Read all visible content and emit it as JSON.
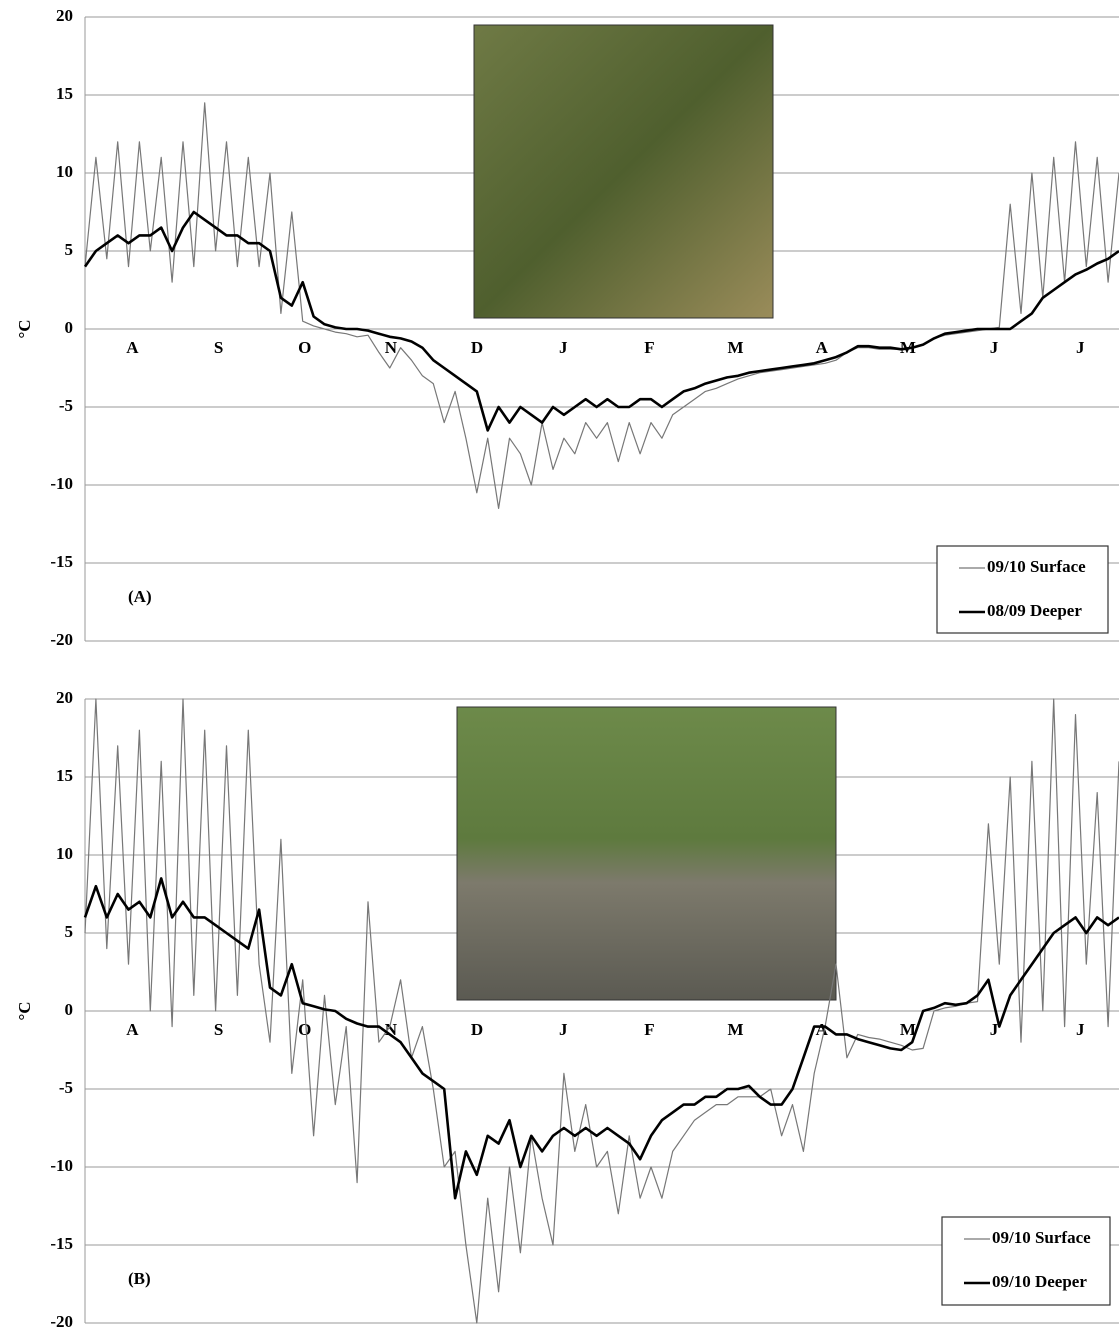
{
  "chart_data": [
    {
      "type": "line",
      "panel_label": "(A)",
      "y_label": "°C",
      "x_labels": [
        "A",
        "S",
        "O",
        "N",
        "D",
        "J",
        "F",
        "M",
        "A",
        "M",
        "J",
        "J"
      ],
      "ylim": [
        -20,
        20
      ],
      "yticks": [
        -20,
        -15,
        -10,
        -5,
        0,
        5,
        10,
        15,
        20
      ],
      "grid": true,
      "series": [
        {
          "name": "09/10 Surface",
          "color": "#777777",
          "values": [
            4,
            11,
            4.5,
            12,
            4,
            12,
            5,
            11,
            3,
            12,
            4,
            14.5,
            5,
            12,
            4,
            11,
            4,
            10,
            1,
            7.5,
            0.5,
            0.2,
            0,
            -0.2,
            -0.3,
            -0.5,
            -0.4,
            -1.5,
            -2.5,
            -1.2,
            -2,
            -3,
            -3.5,
            -6,
            -4,
            -7,
            -10.5,
            -7,
            -11.5,
            -7,
            -8,
            -10,
            -6,
            -9,
            -7,
            -8,
            -6,
            -7,
            -6,
            -8.5,
            -6,
            -8,
            -6,
            -7,
            -5.5,
            -5,
            -4.5,
            -4,
            -3.8,
            -3.5,
            -3.2,
            -3,
            -2.8,
            -2.7,
            -2.6,
            -2.5,
            -2.4,
            -2.3,
            -2.2,
            -2,
            -1.5,
            -1.2,
            -1.2,
            -1.3,
            -1.3,
            -1.3,
            -1.2,
            -1,
            -0.6,
            -0.4,
            -0.3,
            -0.2,
            -0.1,
            0,
            0.1,
            8,
            1,
            10,
            2,
            11,
            3,
            12,
            4,
            11,
            3,
            10
          ]
        },
        {
          "name": "08/09 Deeper",
          "color": "#000000",
          "values": [
            4,
            5,
            5.5,
            6,
            5.5,
            6,
            6,
            6.5,
            5,
            6.5,
            7.5,
            7,
            6.5,
            6,
            6,
            5.5,
            5.5,
            5,
            2,
            1.5,
            3,
            0.8,
            0.3,
            0.1,
            0,
            0,
            -0.1,
            -0.3,
            -0.5,
            -0.6,
            -0.8,
            -1.2,
            -2,
            -2.5,
            -3,
            -3.5,
            -4,
            -6.5,
            -5,
            -6,
            -5,
            -5.5,
            -6,
            -5,
            -5.5,
            -5,
            -4.5,
            -5,
            -4.5,
            -5,
            -5,
            -4.5,
            -4.5,
            -5,
            -4.5,
            -4,
            -3.8,
            -3.5,
            -3.3,
            -3.1,
            -3,
            -2.8,
            -2.7,
            -2.6,
            -2.5,
            -2.4,
            -2.3,
            -2.2,
            -2,
            -1.8,
            -1.5,
            -1.1,
            -1.1,
            -1.2,
            -1.2,
            -1.3,
            -1.2,
            -1,
            -0.6,
            -0.3,
            -0.2,
            -0.1,
            0,
            0,
            0,
            0,
            0.5,
            1,
            2,
            2.5,
            3,
            3.5,
            3.8,
            4.2,
            4.5,
            5
          ]
        }
      ]
    },
    {
      "type": "line",
      "panel_label": "(B)",
      "y_label": "°C",
      "x_labels": [
        "A",
        "S",
        "O",
        "N",
        "D",
        "J",
        "F",
        "M",
        "A",
        "M",
        "J",
        "J"
      ],
      "ylim": [
        -20,
        20
      ],
      "yticks": [
        -20,
        -15,
        -10,
        -5,
        0,
        5,
        10,
        15,
        20
      ],
      "grid": true,
      "series": [
        {
          "name": "09/10 Surface",
          "color": "#777777",
          "values": [
            5,
            20,
            4,
            17,
            3,
            18,
            0,
            16,
            -1,
            20,
            1,
            18,
            0,
            17,
            1,
            18,
            3,
            -2,
            11,
            -4,
            2,
            -8,
            1,
            -6,
            -1,
            -11,
            7,
            -2,
            -1,
            2,
            -3,
            -1,
            -5,
            -10,
            -9,
            -15,
            -20,
            -12,
            -18,
            -10,
            -15.5,
            -8,
            -12,
            -15,
            -4,
            -9,
            -6,
            -10,
            -9,
            -13,
            -8,
            -12,
            -10,
            -12,
            -9,
            -8,
            -7,
            -6.5,
            -6,
            -6,
            -5.5,
            -5.5,
            -5.5,
            -5,
            -8,
            -6,
            -9,
            -4,
            -1,
            3,
            -3,
            -1.5,
            -1.7,
            -1.8,
            -2,
            -2.2,
            -2.5,
            -2.4,
            0,
            0.2,
            0.3,
            0.5,
            0.6,
            12,
            3,
            15,
            -2,
            16,
            0,
            20,
            -1,
            19,
            3,
            14,
            -1,
            16
          ]
        },
        {
          "name": "09/10 Deeper",
          "color": "#000000",
          "values": [
            6,
            8,
            6,
            7.5,
            6.5,
            7,
            6,
            8.5,
            6,
            7,
            6,
            6,
            5.5,
            5,
            4.5,
            4,
            6.5,
            1.5,
            1,
            3,
            0.5,
            0.3,
            0.1,
            0,
            -0.5,
            -0.8,
            -1,
            -1,
            -1.5,
            -2,
            -3,
            -4,
            -4.5,
            -5,
            -12,
            -9,
            -10.5,
            -8,
            -8.5,
            -7,
            -10,
            -8,
            -9,
            -8,
            -7.5,
            -8,
            -7.5,
            -8,
            -7.5,
            -8,
            -8.5,
            -9.5,
            -8,
            -7,
            -6.5,
            -6,
            -6,
            -5.5,
            -5.5,
            -5,
            -5,
            -4.8,
            -5.5,
            -6,
            -6,
            -5,
            -3,
            -1,
            -1,
            -1.5,
            -1.5,
            -1.8,
            -2,
            -2.2,
            -2.4,
            -2.5,
            -2,
            0,
            0.2,
            0.5,
            0.4,
            0.5,
            1,
            2,
            -1,
            1,
            2,
            3,
            4,
            5,
            5.5,
            6,
            5,
            6,
            5.5,
            6
          ]
        }
      ]
    }
  ]
}
